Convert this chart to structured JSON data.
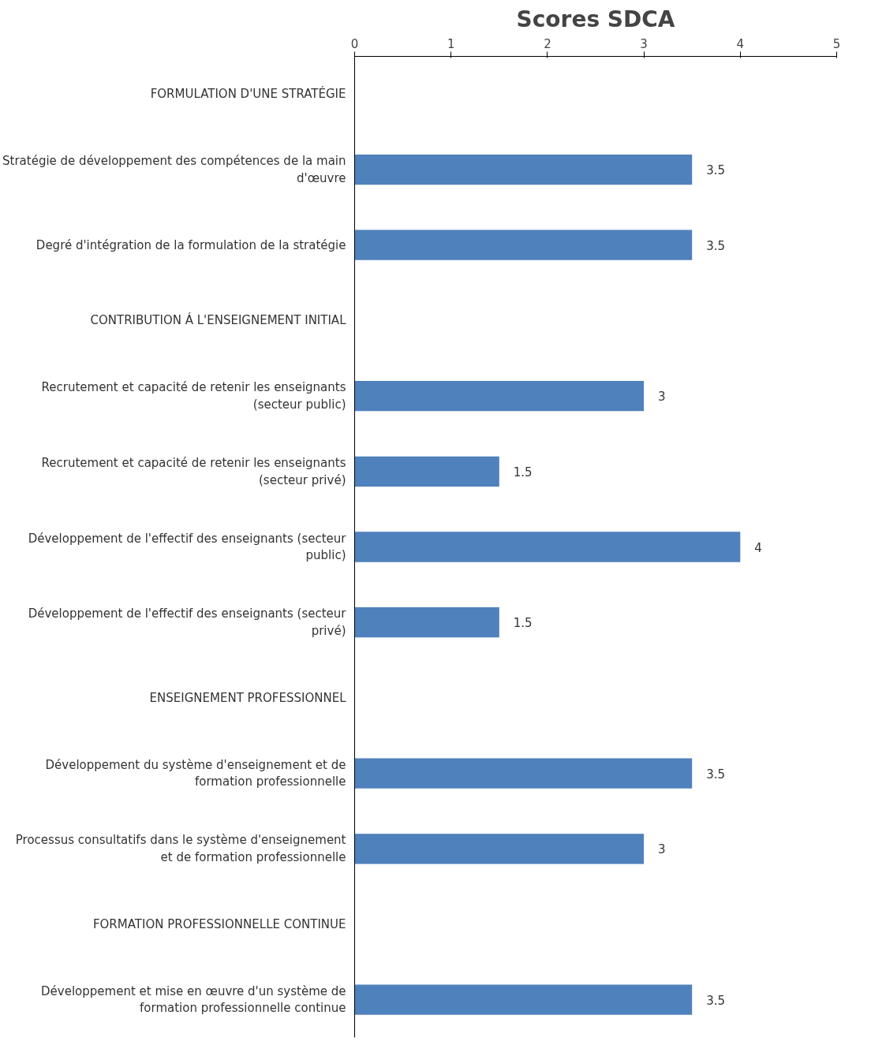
{
  "chart_data": {
    "type": "bar",
    "orientation": "horizontal",
    "title": "Scores SDCA",
    "categories": [
      "FORMULATION D'UNE STRATÉGIE",
      "Stratégie de développement des compétences de la main d'œuvre",
      "Degré d'intégration de la formulation de la stratégie",
      "CONTRIBUTION Á L'ENSEIGNEMENT INITIAL",
      "Recrutement et capacité de retenir les enseignants (secteur public)",
      "Recrutement et capacité de retenir les enseignants (secteur privé)",
      "Développement de l'effectif des enseignants (secteur public)",
      "Développement de l'effectif des enseignants (secteur privé)",
      "ENSEIGNEMENT PROFESSIONNEL",
      "Développement du système d'enseignement et de formation professionnelle",
      "Processus consultatifs dans le système d'enseignement et de formation professionnelle",
      "FORMATION PROFESSIONNELLE CONTINUE",
      "Développement et mise en œuvre d'un système de formation professionnelle continue"
    ],
    "values": [
      null,
      3.5,
      3.5,
      null,
      3,
      1.5,
      4,
      1.5,
      null,
      3.5,
      3,
      null,
      3.5
    ],
    "color": "#4f81bd",
    "xlim": [
      0,
      5
    ],
    "xticks": [
      0,
      1,
      2,
      3,
      4,
      5
    ],
    "data_labels": true,
    "grid": false
  }
}
